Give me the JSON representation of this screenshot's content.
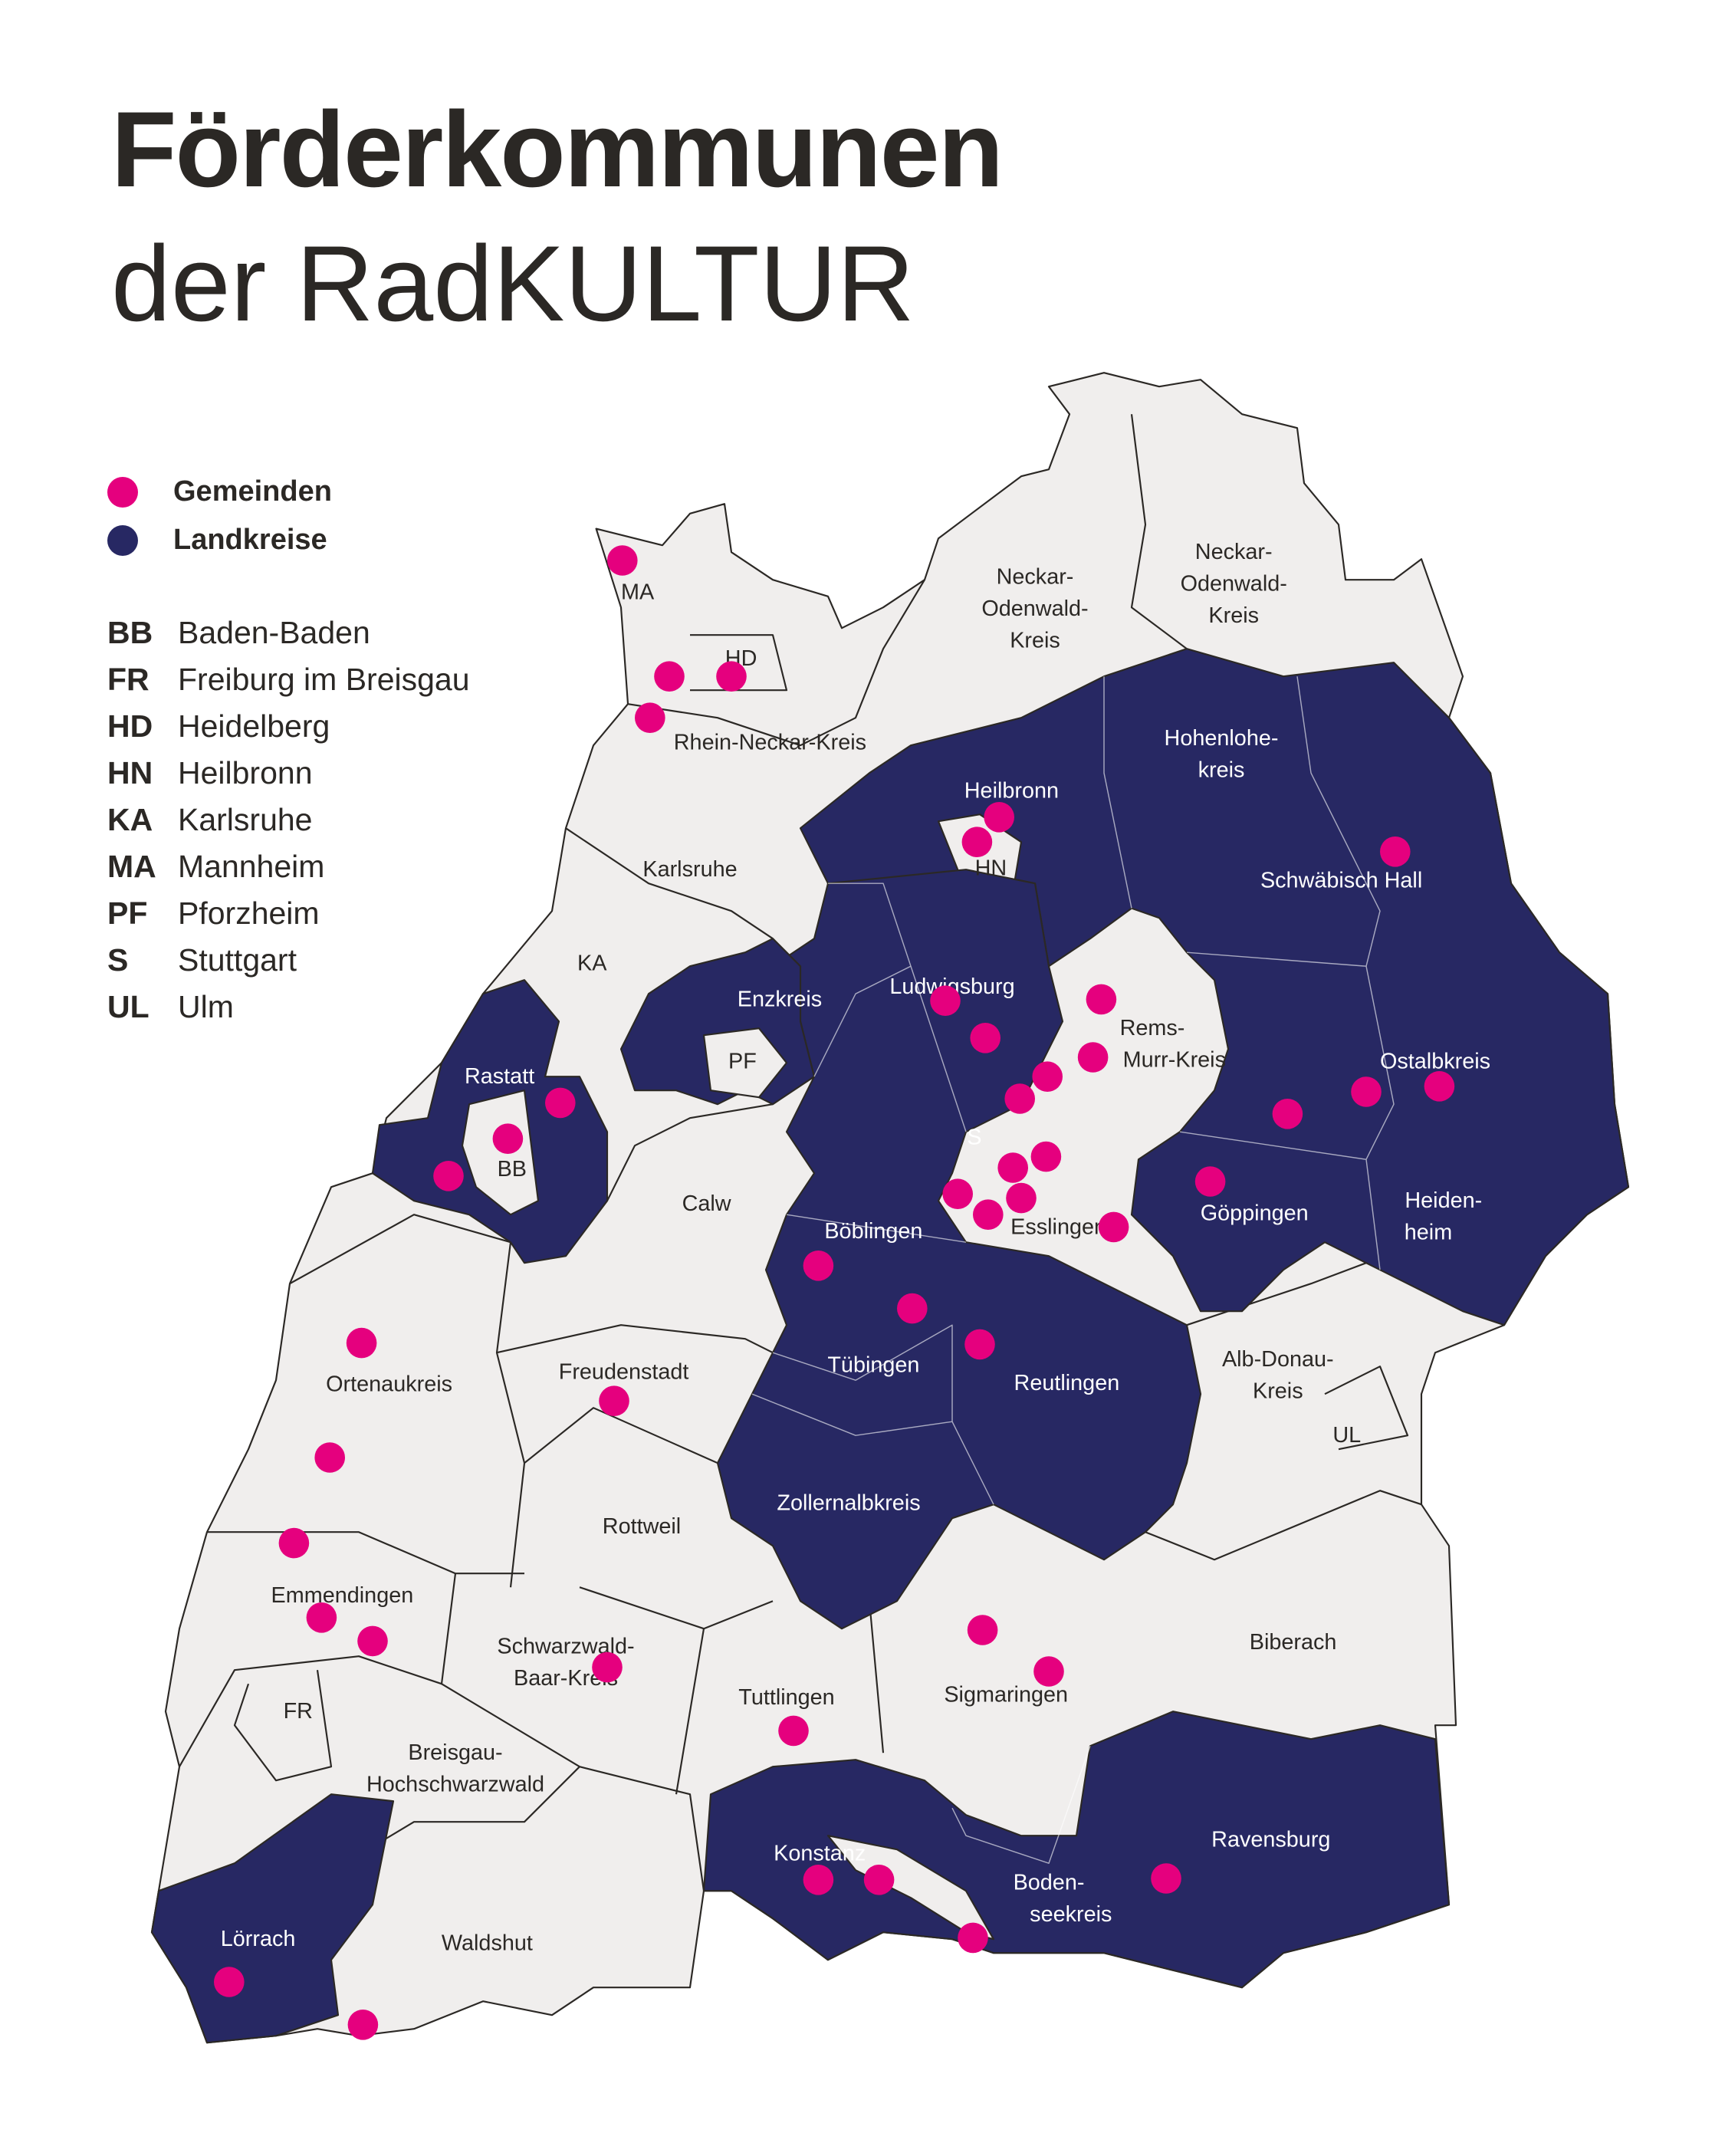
{
  "title": {
    "line1": "Förderkommunen",
    "line2": "der RadKULTUR"
  },
  "colors": {
    "gemeinden": "#e5007e",
    "landkreise": "#272863",
    "other_districts": "#f0eeed",
    "text": "#2b2825"
  },
  "legend": [
    {
      "label": "Gemeinden",
      "icon": "pink-dot"
    },
    {
      "label": "Landkreise",
      "icon": "navy-dot"
    }
  ],
  "abbreviations": [
    {
      "code": "BB",
      "name": "Baden-Baden"
    },
    {
      "code": "FR",
      "name": "Freiburg im Breisgau"
    },
    {
      "code": "HD",
      "name": "Heidelberg"
    },
    {
      "code": "HN",
      "name": "Heilbronn"
    },
    {
      "code": "KA",
      "name": "Karlsruhe"
    },
    {
      "code": "MA",
      "name": "Mannheim"
    },
    {
      "code": "PF",
      "name": "Pforzheim"
    },
    {
      "code": "S",
      "name": "Stuttgart"
    },
    {
      "code": "UL",
      "name": "Ulm"
    }
  ],
  "map_labels": {
    "ma": "MA",
    "hd": "HD",
    "rnk": "Rhein-Neckar-Kreis",
    "nok1": [
      "Neckar-",
      "Odenwald-",
      "Kreis"
    ],
    "nok2": [
      "Neckar-",
      "Odenwald-",
      "Kreis"
    ],
    "hohenlohe": [
      "Hohenlohe-",
      "kreis"
    ],
    "heilbronn": "Heilbronn",
    "hn": "HN",
    "sha": "Schwäbisch Hall",
    "karlsruhe": "Karlsruhe",
    "ka": "KA",
    "enzkreis": "Enzkreis",
    "pf": "PF",
    "ludwigsburg": "Ludwigsburg",
    "rems": [
      "Rems-",
      "Murr-Kreis"
    ],
    "ostalb": "Ostalbkreis",
    "rastatt": "Rastatt",
    "bb": "BB",
    "s": "S",
    "calw": "Calw",
    "boeblingen": "Böblingen",
    "esslingen": "Esslingen",
    "goeppingen": "Göppingen",
    "heidenheim": [
      "Heiden-",
      "heim"
    ],
    "ortenau": "Ortenaukreis",
    "freudenstadt": "Freudenstadt",
    "tuebingen": "Tübingen",
    "reutlingen": "Reutlingen",
    "alb_donau": [
      "Alb-Donau-",
      "Kreis"
    ],
    "ul": "UL",
    "rottweil": "Rottweil",
    "zollernalb": "Zollernalbkreis",
    "emmendingen": "Emmendingen",
    "sbk": [
      "Schwarzwald-",
      "Baar-Kreis"
    ],
    "biberach": "Biberach",
    "tuttlingen": "Tuttlingen",
    "sigmaringen": "Sigmaringen",
    "fr": "FR",
    "bhs": [
      "Breisgau-",
      "Hochschwarzwald"
    ],
    "konstanz": "Konstanz",
    "ravensburg": "Ravensburg",
    "bodensee": [
      "Boden-",
      "seekreis"
    ],
    "loerrach": "Lörrach",
    "waldshut": "Waldshut"
  }
}
